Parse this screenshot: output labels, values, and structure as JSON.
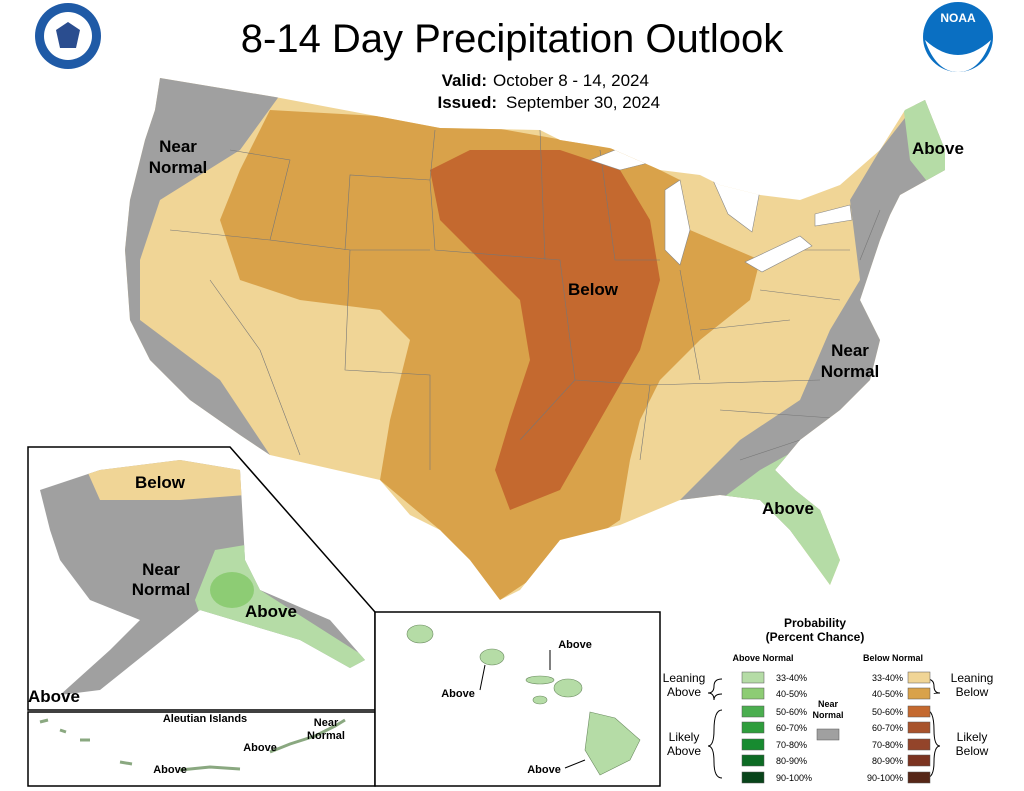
{
  "header": {
    "title": "8-14 Day Precipitation Outlook",
    "valid_label": "Valid:",
    "valid": "October 8 - 14, 2024",
    "issued_label": "Issued:",
    "issued": "September 30, 2024",
    "noaa_logo_text": "NOAA"
  },
  "map": {
    "conus_labels": [
      {
        "lines": [
          "Near",
          "Normal"
        ]
      },
      {
        "lines": [
          "Above"
        ]
      },
      {
        "lines": [
          "Below"
        ]
      },
      {
        "lines": [
          "Near",
          "Normal"
        ]
      },
      {
        "lines": [
          "Above"
        ]
      }
    ],
    "alaska_labels": [
      {
        "lines": [
          "Below"
        ]
      },
      {
        "lines": [
          "Near",
          "Normal"
        ]
      },
      {
        "lines": [
          "Above"
        ]
      },
      {
        "lines": [
          "Above"
        ]
      }
    ],
    "aleutian": {
      "title": "Aleutian Islands",
      "labels": [
        {
          "lines": [
            "Near",
            "Normal"
          ]
        },
        {
          "lines": [
            "Above"
          ]
        },
        {
          "lines": [
            "Above"
          ]
        }
      ]
    },
    "hawaii_labels": [
      {
        "lines": [
          "Above"
        ]
      },
      {
        "lines": [
          "Above"
        ]
      },
      {
        "lines": [
          "Above"
        ]
      }
    ]
  },
  "legend": {
    "title": [
      "Probability",
      "(Percent Chance)"
    ],
    "above_header": "Above Normal",
    "below_header": "Below Normal",
    "leaning_above": [
      "Leaning",
      "Above"
    ],
    "likely_above": [
      "Likely",
      "Above"
    ],
    "near_normal": [
      "Near",
      "Normal"
    ],
    "near_normal_color": "#a0a0a0",
    "leaning_below": [
      "Leaning",
      "Below"
    ],
    "likely_below": [
      "Likely",
      "Below"
    ],
    "above": [
      {
        "range": "33-40%",
        "color": "#b5dca6"
      },
      {
        "range": "40-50%",
        "color": "#8dcc74"
      },
      {
        "range": "50-60%",
        "color": "#4bae4f"
      },
      {
        "range": "60-70%",
        "color": "#2f9d3c"
      },
      {
        "range": "70-80%",
        "color": "#178b30"
      },
      {
        "range": "80-90%",
        "color": "#0d6b24"
      },
      {
        "range": "90-100%",
        "color": "#08441a"
      }
    ],
    "below": [
      {
        "range": "33-40%",
        "color": "#f0d596"
      },
      {
        "range": "40-50%",
        "color": "#d9a24a"
      },
      {
        "range": "50-60%",
        "color": "#c4692f"
      },
      {
        "range": "60-70%",
        "color": "#a8532c"
      },
      {
        "range": "70-80%",
        "color": "#93442a"
      },
      {
        "range": "80-90%",
        "color": "#7b3320"
      },
      {
        "range": "90-100%",
        "color": "#562617"
      }
    ]
  }
}
